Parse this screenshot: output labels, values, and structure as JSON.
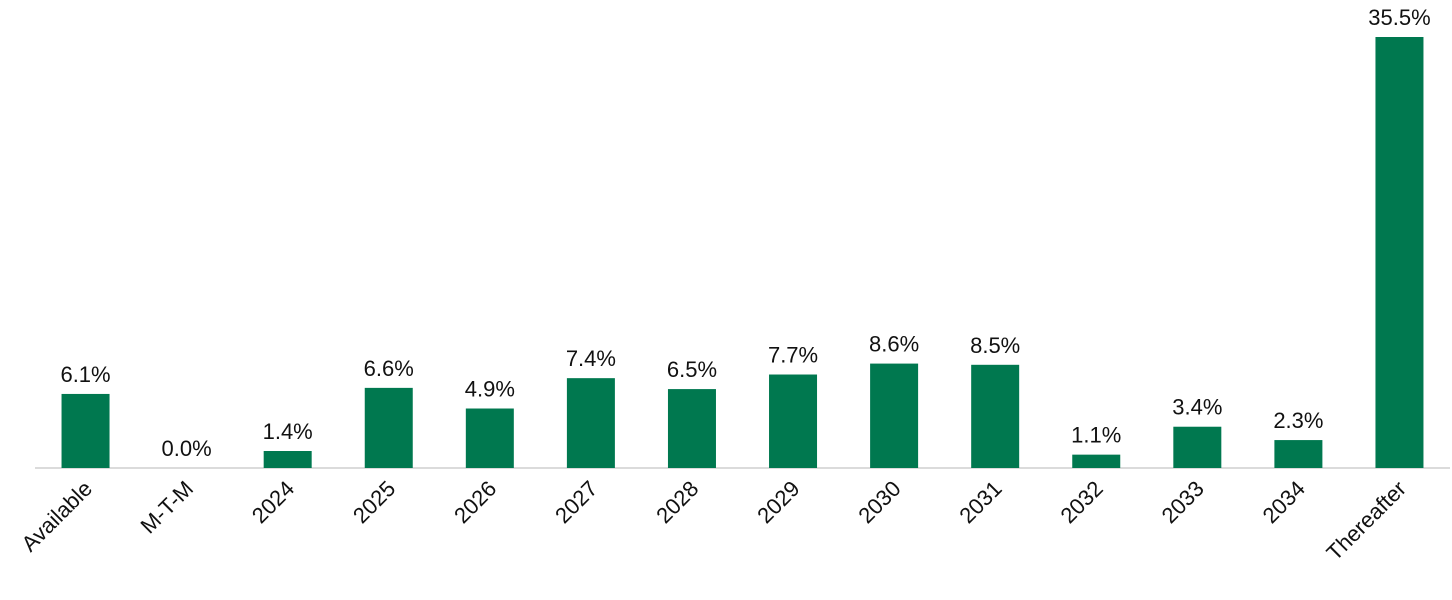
{
  "chart_data": {
    "type": "bar",
    "categories": [
      "Available",
      "M-T-M",
      "2024",
      "2025",
      "2026",
      "2027",
      "2028",
      "2029",
      "2030",
      "2031",
      "2032",
      "2033",
      "2034",
      "Thereafter"
    ],
    "values": [
      6.1,
      0.0,
      1.4,
      6.6,
      4.9,
      7.4,
      6.5,
      7.7,
      8.6,
      8.5,
      1.1,
      3.4,
      2.3,
      35.5
    ],
    "value_labels": [
      "6.1%",
      "0.0%",
      "1.4%",
      "6.6%",
      "4.9%",
      "7.4%",
      "6.5%",
      "7.7%",
      "8.6%",
      "8.5%",
      "1.1%",
      "3.4%",
      "2.3%",
      "35.5%"
    ],
    "color": "#00784f"
  }
}
